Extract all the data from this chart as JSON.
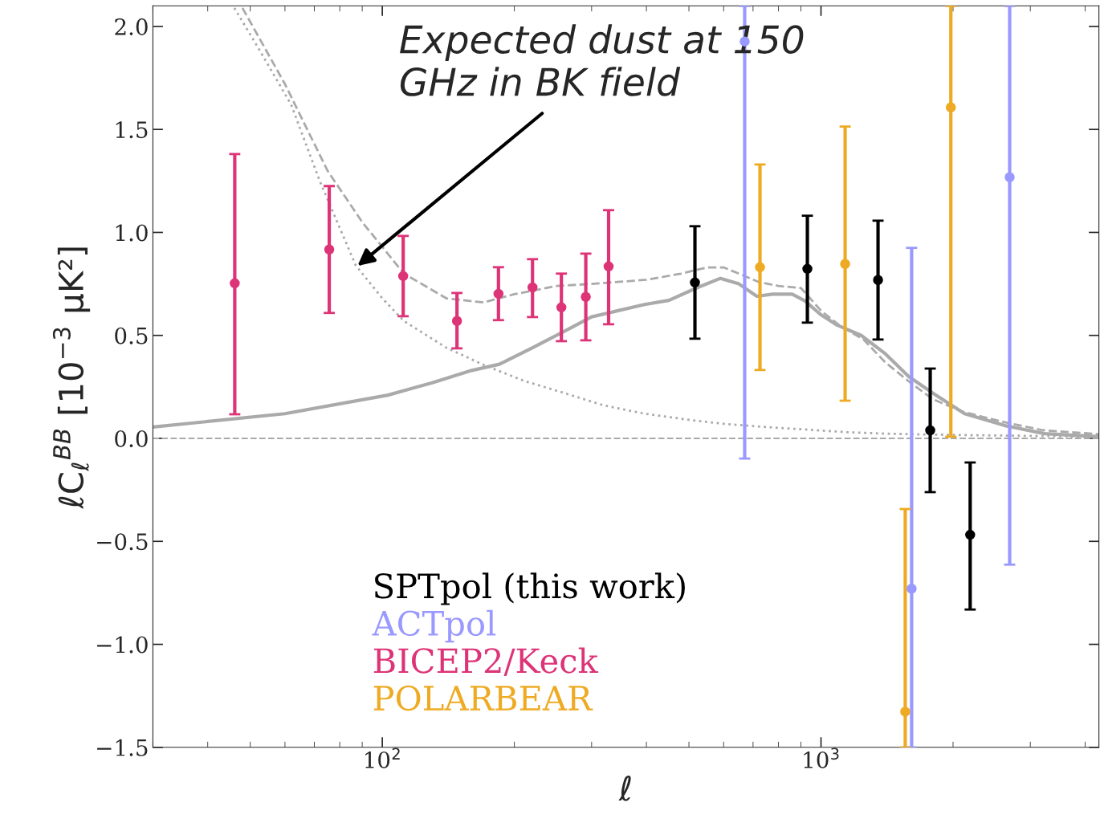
{
  "chart_data": {
    "type": "scatter",
    "xlabel": "ℓ",
    "ylabel": "ℓC$_{ℓ}$$^{BB}$ [10$^{−3}$ μK²]",
    "log": "x",
    "xlim": [
      30,
      4300
    ],
    "ylim": [
      -1.5,
      2.1
    ],
    "xticks": [
      {
        "value": 100,
        "label": "10$^{2}$"
      },
      {
        "value": 1000,
        "label": "10$^{3}$"
      }
    ],
    "yticks": [
      {
        "value": -1.5,
        "label": "−1.5"
      },
      {
        "value": -1.0,
        "label": "−1.0"
      },
      {
        "value": -0.5,
        "label": "−0.5"
      },
      {
        "value": 0,
        "label": "0.0"
      },
      {
        "value": 0.5,
        "label": "0.5"
      },
      {
        "value": 1.0,
        "label": "1.0"
      },
      {
        "value": 1.5,
        "label": "1.5"
      },
      {
        "value": 2.0,
        "label": "2.0"
      }
    ],
    "legend": "bottom left",
    "marker": "circle",
    "grid": false,
    "ref_lines": [
      {
        "axis": "y",
        "value": 0,
        "color": "#aaaaaa",
        "line_style": "dashed"
      }
    ],
    "annotations": [
      {
        "text": "Expected dust at 150\nGHz in BK field",
        "x": 87,
        "y": 0.83
      }
    ],
    "series": [
      {
        "type": "line",
        "color": "#aaaaaa",
        "line_style": "solid",
        "marker": "none",
        "x": [
          30,
          60,
          103,
          130,
          160,
          185,
          220,
          260,
          300,
          396,
          450,
          520,
          590,
          650,
          714,
          776,
          860,
          920,
          1000,
          1088,
          1235,
          1396,
          1585,
          1797,
          2125,
          2626,
          3238,
          4300
        ],
        "values": [
          0.055,
          0.12,
          0.21,
          0.27,
          0.33,
          0.36,
          0.44,
          0.52,
          0.59,
          0.65,
          0.67,
          0.73,
          0.777,
          0.75,
          0.69,
          0.7,
          0.7,
          0.667,
          0.6,
          0.55,
          0.5,
          0.414,
          0.3,
          0.22,
          0.12,
          0.062,
          0.023,
          0.008
        ]
      },
      {
        "type": "line",
        "color": "#aaaaaa",
        "line_style": "dotted",
        "marker": "none",
        "x": [
          46,
          52,
          62,
          72,
          87,
          100,
          112,
          140,
          171,
          210,
          260,
          320,
          396,
          500,
          604,
          750,
          920,
          1150,
          1396,
          1700,
          2125,
          3000,
          4300
        ],
        "values": [
          2.09,
          1.9,
          1.62,
          1.25,
          0.84,
          0.68,
          0.57,
          0.44,
          0.355,
          0.28,
          0.22,
          0.16,
          0.12,
          0.09,
          0.07,
          0.055,
          0.043,
          0.03,
          0.023,
          0.019,
          0.016,
          0.012,
          0.008
        ]
      },
      {
        "type": "line",
        "color": "#aaaaaa",
        "line_style": "dashed",
        "marker": "none",
        "x": [
          48,
          60,
          75,
          90,
          112,
          140,
          170,
          200,
          250,
          300,
          400,
          480,
          550,
          600,
          650,
          720,
          800,
          900,
          1000,
          1100,
          1250,
          1400,
          1600,
          1800,
          2100,
          2600,
          3200,
          4300
        ],
        "values": [
          2.09,
          1.72,
          1.3,
          1.05,
          0.8,
          0.68,
          0.66,
          0.7,
          0.74,
          0.75,
          0.77,
          0.8,
          0.83,
          0.83,
          0.8,
          0.76,
          0.74,
          0.73,
          0.62,
          0.55,
          0.48,
          0.37,
          0.27,
          0.19,
          0.13,
          0.08,
          0.04,
          0.02
        ]
      },
      {
        "name": "SPTpol (this work)",
        "color": "#000000",
        "x": [
          516,
          931,
          1349,
          1774,
          2188
        ],
        "values": [
          0.757,
          0.823,
          0.769,
          0.039,
          -0.468
        ],
        "errors": [
          [
            0.484,
            1.03
          ],
          [
            0.562,
            1.081
          ],
          [
            0.48,
            1.057
          ],
          [
            -0.261,
            0.339
          ],
          [
            -0.831,
            -0.117
          ]
        ]
      },
      {
        "name": "ACTpol",
        "color": "#9999ff",
        "x": [
          670,
          1609,
          2692
        ],
        "values": [
          1.927,
          -0.73,
          1.268
        ],
        "errors": [
          [
            -0.098,
            2.1
          ],
          [
            -1.5,
            0.925
          ],
          [
            -0.613,
            2.1
          ]
        ]
      },
      {
        "name": "BICEP2/Keck",
        "color": "#dd3377",
        "x": [
          46.1,
          75.7,
          111.6,
          148,
          184,
          220,
          256,
          291,
          328
        ],
        "values": [
          0.753,
          0.917,
          0.788,
          0.57,
          0.702,
          0.733,
          0.636,
          0.687,
          0.835
        ],
        "errors": [
          [
            0.117,
            1.38
          ],
          [
            0.609,
            1.225
          ],
          [
            0.593,
            0.983
          ],
          [
            0.437,
            0.706
          ],
          [
            0.574,
            0.831
          ],
          [
            0.589,
            0.87
          ],
          [
            0.472,
            0.8
          ],
          [
            0.476,
            0.897
          ],
          [
            0.554,
            1.108
          ]
        ]
      },
      {
        "name": "POLARBEAR",
        "color": "#eeaa22",
        "x": [
          726,
          1135,
          1556,
          1977
        ],
        "values": [
          0.831,
          0.847,
          -1.327,
          1.607
        ],
        "errors": [
          [
            0.332,
            1.33
          ],
          [
            0.183,
            1.514
          ],
          [
            -1.5,
            -0.343
          ],
          [
            0.008,
            2.1
          ]
        ]
      }
    ]
  }
}
